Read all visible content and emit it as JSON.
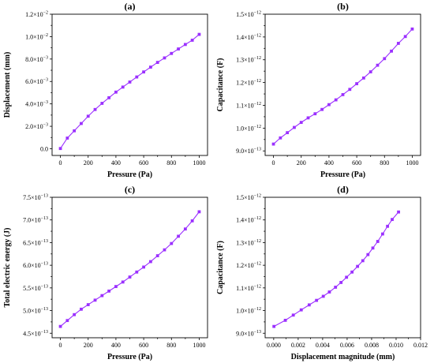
{
  "colors": {
    "series": "#9b30ff",
    "axes": "#000000"
  },
  "chart_data": [
    {
      "panel": "(a)",
      "type": "line",
      "xlabel": "Pressure (Pa)",
      "ylabel": "Displacement (mm)",
      "xlim": [
        -60,
        1060
      ],
      "ylim": [
        -0.0006,
        0.012
      ],
      "xticks": [
        0,
        200,
        400,
        600,
        800,
        1000
      ],
      "xtick_labels": [
        "0",
        "200",
        "400",
        "600",
        "800",
        "1000"
      ],
      "yticks": [
        0,
        0.002,
        0.004,
        0.006,
        0.008,
        0.01,
        0.012
      ],
      "ytick_labels": [
        {
          "m": "0.0",
          "e": ""
        },
        {
          "m": "2.0×10",
          "e": "−3"
        },
        {
          "m": "4.0×10",
          "e": "−3"
        },
        {
          "m": "6.0×10",
          "e": "−3"
        },
        {
          "m": "8.0×10",
          "e": "−3"
        },
        {
          "m": "1.0×10",
          "e": "−2"
        },
        {
          "m": "1.2×10",
          "e": "−2"
        }
      ],
      "x": [
        0,
        50,
        100,
        150,
        200,
        250,
        300,
        350,
        400,
        450,
        500,
        550,
        600,
        650,
        700,
        750,
        800,
        850,
        900,
        950,
        1000
      ],
      "y": [
        2e-05,
        0.00095,
        0.0016,
        0.00225,
        0.0029,
        0.0035,
        0.00405,
        0.00455,
        0.00505,
        0.0055,
        0.00595,
        0.0064,
        0.00685,
        0.00728,
        0.0077,
        0.0081,
        0.0085,
        0.0089,
        0.0093,
        0.00968,
        0.0102
      ]
    },
    {
      "panel": "(b)",
      "type": "line",
      "xlabel": "Pressure (Pa)",
      "ylabel": "Capacitance (F)",
      "xlim": [
        -60,
        1060
      ],
      "ylim": [
        8.8e-13,
        1.5e-12
      ],
      "xticks": [
        0,
        200,
        400,
        600,
        800,
        1000
      ],
      "xtick_labels": [
        "0",
        "200",
        "400",
        "600",
        "800",
        "1000"
      ],
      "yticks": [
        9e-13,
        1e-12,
        1.1e-12,
        1.2e-12,
        1.3e-12,
        1.4e-12,
        1.5e-12
      ],
      "ytick_labels": [
        {
          "m": "9.0×10",
          "e": "−13"
        },
        {
          "m": "1.0×10",
          "e": "−12"
        },
        {
          "m": "1.1×10",
          "e": "−12"
        },
        {
          "m": "1.2×10",
          "e": "−12"
        },
        {
          "m": "1.3×10",
          "e": "−12"
        },
        {
          "m": "1.4×10",
          "e": "−12"
        },
        {
          "m": "1.5×10",
          "e": "−12"
        }
      ],
      "x": [
        0,
        50,
        100,
        150,
        200,
        250,
        300,
        350,
        400,
        450,
        500,
        550,
        600,
        650,
        700,
        750,
        800,
        850,
        900,
        950,
        1000
      ],
      "y": [
        9.3e-13,
        9.57e-13,
        9.8e-13,
        1.003e-12,
        1.025e-12,
        1.045e-12,
        1.063e-12,
        1.082e-12,
        1.103e-12,
        1.124e-12,
        1.147e-12,
        1.17e-12,
        1.195e-12,
        1.22e-12,
        1.247e-12,
        1.276e-12,
        1.305e-12,
        1.338e-12,
        1.372e-12,
        1.402e-12,
        1.435e-12
      ]
    },
    {
      "panel": "(c)",
      "type": "line",
      "xlabel": "Pressure (Pa)",
      "ylabel": "Total electric energy (J)",
      "xlim": [
        -60,
        1060
      ],
      "ylim": [
        4.4e-13,
        7.5e-13
      ],
      "xticks": [
        0,
        200,
        400,
        600,
        800,
        1000
      ],
      "xtick_labels": [
        "0",
        "200",
        "400",
        "600",
        "800",
        "1000"
      ],
      "yticks": [
        4.5e-13,
        5e-13,
        5.5e-13,
        6e-13,
        6.5e-13,
        7e-13,
        7.5e-13
      ],
      "ytick_labels": [
        {
          "m": "4.5×10",
          "e": "−13"
        },
        {
          "m": "5.0×10",
          "e": "−13"
        },
        {
          "m": "5.5×10",
          "e": "−13"
        },
        {
          "m": "6.0×10",
          "e": "−13"
        },
        {
          "m": "6.5×10",
          "e": "−13"
        },
        {
          "m": "7.0×10",
          "e": "−13"
        },
        {
          "m": "7.5×10",
          "e": "−13"
        }
      ],
      "x": [
        0,
        50,
        100,
        150,
        200,
        250,
        300,
        350,
        400,
        450,
        500,
        550,
        600,
        650,
        700,
        750,
        800,
        850,
        900,
        950,
        1000
      ],
      "y": [
        4.65e-13,
        4.78e-13,
        4.91e-13,
        5.03e-13,
        5.13e-13,
        5.23e-13,
        5.33e-13,
        5.43e-13,
        5.53e-13,
        5.63e-13,
        5.74e-13,
        5.85e-13,
        5.96e-13,
        6.08e-13,
        6.21e-13,
        6.34e-13,
        6.48e-13,
        6.64e-13,
        6.8e-13,
        6.98e-13,
        7.18e-13
      ]
    },
    {
      "panel": "(d)",
      "type": "line",
      "xlabel": "Displacement magnitude (mm)",
      "ylabel": "Capacitance (F)",
      "xlim": [
        -0.0007,
        0.012
      ],
      "ylim": [
        8.8e-13,
        1.5e-12
      ],
      "xticks": [
        0,
        0.002,
        0.004,
        0.006,
        0.008,
        0.01,
        0.012
      ],
      "xtick_labels": [
        "0.000",
        "0.002",
        "0.004",
        "0.006",
        "0.008",
        "0.010",
        "0.012"
      ],
      "yticks": [
        9e-13,
        1e-12,
        1.1e-12,
        1.2e-12,
        1.3e-12,
        1.4e-12,
        1.5e-12
      ],
      "ytick_labels": [
        {
          "m": "9.0×10",
          "e": "−13"
        },
        {
          "m": "1.0×10",
          "e": "−12"
        },
        {
          "m": "1.1×10",
          "e": "−12"
        },
        {
          "m": "1.2×10",
          "e": "−12"
        },
        {
          "m": "1.3×10",
          "e": "−12"
        },
        {
          "m": "1.4×10",
          "e": "−12"
        },
        {
          "m": "1.5×10",
          "e": "−12"
        }
      ],
      "x": [
        2e-05,
        0.00095,
        0.0016,
        0.00225,
        0.0029,
        0.0035,
        0.00405,
        0.00455,
        0.00505,
        0.0055,
        0.00595,
        0.0064,
        0.00685,
        0.00728,
        0.0077,
        0.0081,
        0.0085,
        0.0089,
        0.0093,
        0.00968,
        0.0102
      ],
      "y": [
        9.3e-13,
        9.57e-13,
        9.8e-13,
        1.003e-12,
        1.025e-12,
        1.045e-12,
        1.063e-12,
        1.082e-12,
        1.103e-12,
        1.124e-12,
        1.147e-12,
        1.17e-12,
        1.195e-12,
        1.22e-12,
        1.247e-12,
        1.276e-12,
        1.305e-12,
        1.338e-12,
        1.372e-12,
        1.402e-12,
        1.435e-12
      ]
    }
  ]
}
